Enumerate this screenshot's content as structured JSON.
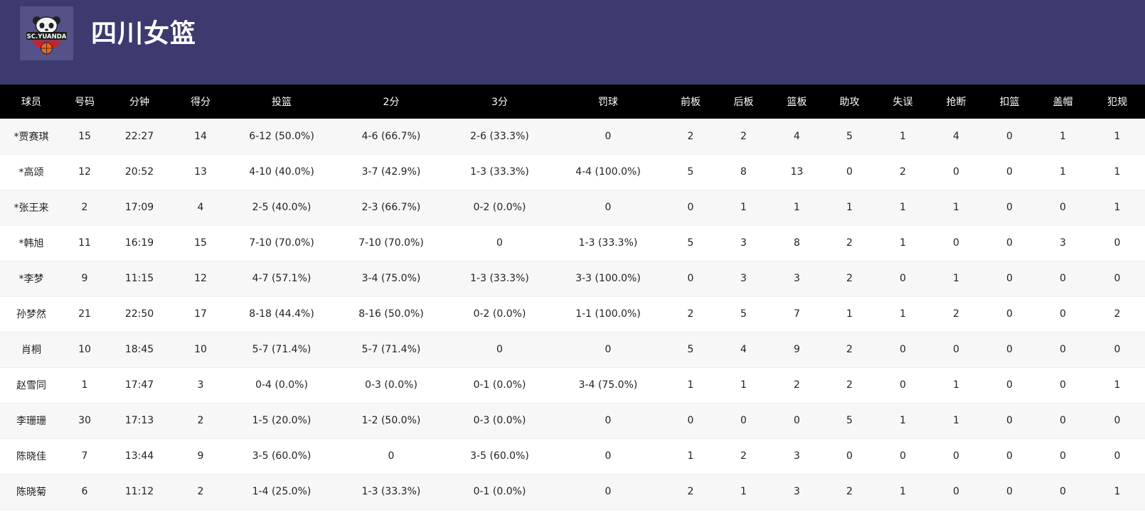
{
  "header": {
    "title": "四川女篮",
    "logo_text": "SC.YUANDA"
  },
  "table": {
    "columns": [
      "球员",
      "号码",
      "分钟",
      "得分",
      "投篮",
      "2分",
      "3分",
      "罚球",
      "前板",
      "后板",
      "篮板",
      "助攻",
      "失误",
      "抢断",
      "扣篮",
      "盖帽",
      "犯规"
    ],
    "rows": [
      [
        "*贾赛琪",
        "15",
        "22:27",
        "14",
        "6-12 (50.0%)",
        "4-6 (66.7%)",
        "2-6 (33.3%)",
        "0",
        "2",
        "2",
        "4",
        "5",
        "1",
        "4",
        "0",
        "1",
        "1"
      ],
      [
        "*高颂",
        "12",
        "20:52",
        "13",
        "4-10 (40.0%)",
        "3-7 (42.9%)",
        "1-3 (33.3%)",
        "4-4 (100.0%)",
        "5",
        "8",
        "13",
        "0",
        "2",
        "0",
        "0",
        "1",
        "1"
      ],
      [
        "*张王来",
        "2",
        "17:09",
        "4",
        "2-5 (40.0%)",
        "2-3 (66.7%)",
        "0-2 (0.0%)",
        "0",
        "0",
        "1",
        "1",
        "1",
        "1",
        "1",
        "0",
        "0",
        "1"
      ],
      [
        "*韩旭",
        "11",
        "16:19",
        "15",
        "7-10 (70.0%)",
        "7-10 (70.0%)",
        "0",
        "1-3 (33.3%)",
        "5",
        "3",
        "8",
        "2",
        "1",
        "0",
        "0",
        "3",
        "0"
      ],
      [
        "*李梦",
        "9",
        "11:15",
        "12",
        "4-7 (57.1%)",
        "3-4 (75.0%)",
        "1-3 (33.3%)",
        "3-3 (100.0%)",
        "0",
        "3",
        "3",
        "2",
        "0",
        "1",
        "0",
        "0",
        "0"
      ],
      [
        "孙梦然",
        "21",
        "22:50",
        "17",
        "8-18 (44.4%)",
        "8-16 (50.0%)",
        "0-2 (0.0%)",
        "1-1 (100.0%)",
        "2",
        "5",
        "7",
        "1",
        "1",
        "2",
        "0",
        "0",
        "2"
      ],
      [
        "肖桐",
        "10",
        "18:45",
        "10",
        "5-7 (71.4%)",
        "5-7 (71.4%)",
        "0",
        "0",
        "5",
        "4",
        "9",
        "2",
        "0",
        "0",
        "0",
        "0",
        "0"
      ],
      [
        "赵雪同",
        "1",
        "17:47",
        "3",
        "0-4 (0.0%)",
        "0-3 (0.0%)",
        "0-1 (0.0%)",
        "3-4 (75.0%)",
        "1",
        "1",
        "2",
        "2",
        "0",
        "1",
        "0",
        "0",
        "1"
      ],
      [
        "李珊珊",
        "30",
        "17:13",
        "2",
        "1-5 (20.0%)",
        "1-2 (50.0%)",
        "0-3 (0.0%)",
        "0",
        "0",
        "0",
        "0",
        "5",
        "1",
        "1",
        "0",
        "0",
        "0"
      ],
      [
        "陈晓佳",
        "7",
        "13:44",
        "9",
        "3-5 (60.0%)",
        "0",
        "3-5 (60.0%)",
        "0",
        "1",
        "2",
        "3",
        "0",
        "0",
        "0",
        "0",
        "0",
        "0"
      ],
      [
        "陈晓菊",
        "6",
        "11:12",
        "2",
        "1-4 (25.0%)",
        "1-3 (33.3%)",
        "0-1 (0.0%)",
        "0",
        "2",
        "1",
        "3",
        "2",
        "1",
        "0",
        "0",
        "0",
        "1"
      ]
    ]
  }
}
